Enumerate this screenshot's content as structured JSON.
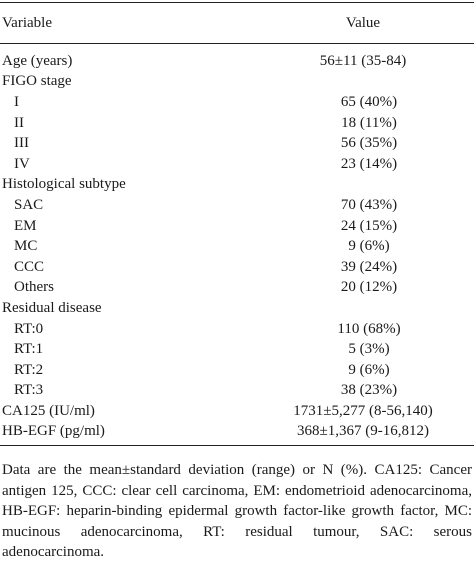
{
  "table": {
    "headers": {
      "variable": "Variable",
      "value": "Value"
    },
    "rows": [
      {
        "label": "Age (years)",
        "value": "56±11 (35-84)",
        "indent": false
      },
      {
        "label": "FIGO stage",
        "value": "",
        "indent": false
      },
      {
        "label": "I",
        "value": "65 (40%)",
        "indent": true
      },
      {
        "label": "II",
        "value": "18 (11%)",
        "indent": true
      },
      {
        "label": "III",
        "value": "56 (35%)",
        "indent": true
      },
      {
        "label": "IV",
        "value": "23 (14%)",
        "indent": true
      },
      {
        "label": "Histological subtype",
        "value": "",
        "indent": false
      },
      {
        "label": "SAC",
        "value": "70 (43%)",
        "indent": true
      },
      {
        "label": "EM",
        "value": "24 (15%)",
        "indent": true
      },
      {
        "label": "MC",
        "value": "9 (6%)",
        "indent": true
      },
      {
        "label": "CCC",
        "value": "39 (24%)",
        "indent": true
      },
      {
        "label": "Others",
        "value": "20 (12%)",
        "indent": true
      },
      {
        "label": "Residual disease",
        "value": "",
        "indent": false
      },
      {
        "label": "RT:0",
        "value": "110 (68%)",
        "indent": true
      },
      {
        "label": "RT:1",
        "value": "5 (3%)",
        "indent": true
      },
      {
        "label": "RT:2",
        "value": "9 (6%)",
        "indent": true
      },
      {
        "label": "RT:3",
        "value": "38 (23%)",
        "indent": true
      },
      {
        "label": "CA125 (IU/ml)",
        "value": "1731±5,277 (8-56,140)",
        "indent": false
      },
      {
        "label": "HB-EGF (pg/ml)",
        "value": "368±1,367 (9-16,812)",
        "indent": false
      }
    ]
  },
  "footnote": "Data are the mean±standard deviation (range) or N (%). CA125: Cancer antigen 125, CCC: clear cell carcinoma, EM: endometrioid adenocarcinoma, HB-EGF: heparin-binding epidermal growth factor-like growth factor, MC: mucinous adenocarcinoma, RT: residual tumour, SAC: serous adenocarcinoma."
}
